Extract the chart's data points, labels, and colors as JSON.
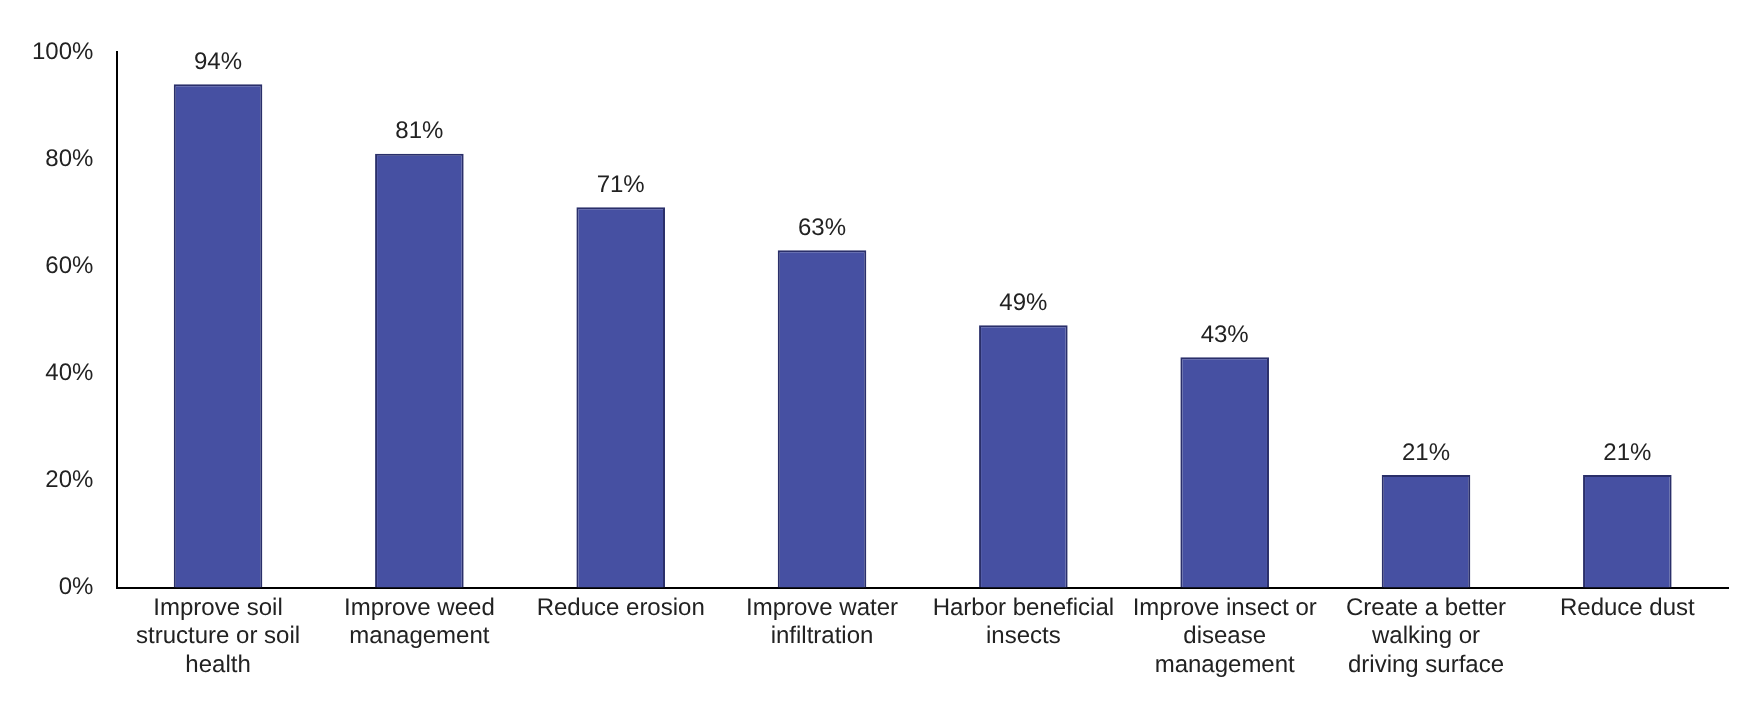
{
  "chart_data": {
    "type": "bar",
    "categories": [
      "Improve soil structure or soil health",
      "Improve weed management",
      "Reduce erosion",
      "Improve water infiltration",
      "Harbor beneficial insects",
      "Improve insect or disease management",
      "Create a better walking or driving surface",
      "Reduce dust"
    ],
    "values": [
      94,
      81,
      71,
      63,
      49,
      43,
      21,
      21
    ],
    "value_labels": [
      "94%",
      "81%",
      "71%",
      "63%",
      "49%",
      "43%",
      "21%",
      "21%"
    ],
    "color": "#4650a2",
    "ylim": [
      0,
      100
    ],
    "yticks": [
      {
        "value": 0,
        "label": "0%"
      },
      {
        "value": 20,
        "label": "20%"
      },
      {
        "value": 40,
        "label": "40%"
      },
      {
        "value": 60,
        "label": "60%"
      },
      {
        "value": 80,
        "label": "80%"
      },
      {
        "value": 100,
        "label": "100%"
      }
    ],
    "grid": false,
    "legend": false
  }
}
